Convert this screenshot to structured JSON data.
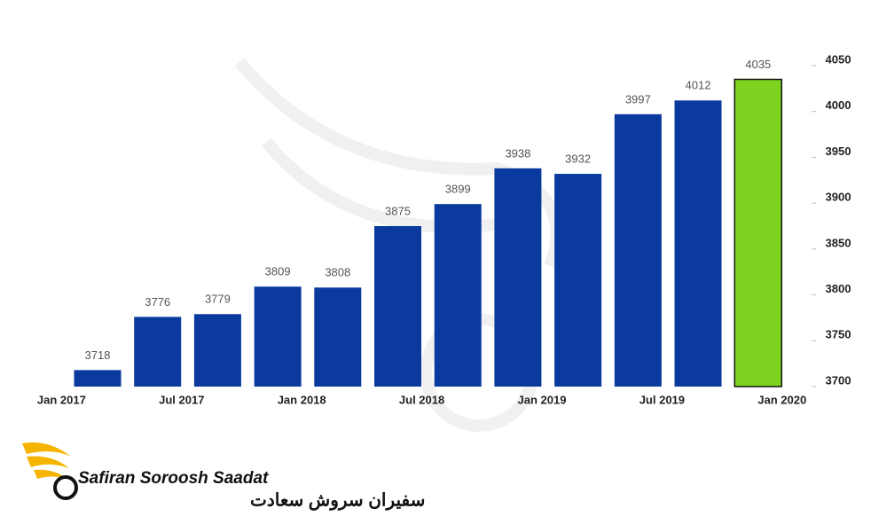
{
  "chart_data": {
    "type": "bar",
    "categories": [
      null,
      null,
      null,
      null,
      null,
      null,
      null,
      null,
      null,
      null,
      null,
      null
    ],
    "x_labels": [
      "Jan 2017",
      "Jul 2017",
      "Jan 2018",
      "Jul 2018",
      "Jan 2019",
      "Jul 2019",
      "Jan 2020"
    ],
    "values": [
      3718,
      3776,
      3779,
      3809,
      3808,
      3875,
      3899,
      3938,
      3932,
      3997,
      4012,
      4035
    ],
    "colors": [
      "#0a3a9e",
      "#0a3a9e",
      "#0a3a9e",
      "#0a3a9e",
      "#0a3a9e",
      "#0a3a9e",
      "#0a3a9e",
      "#0a3a9e",
      "#0a3a9e",
      "#0a3a9e",
      "#0a3a9e",
      "#7ed321"
    ],
    "ylim": [
      3700,
      4050
    ],
    "yticks": [
      3700,
      3750,
      3800,
      3850,
      3900,
      3950,
      4000,
      4050
    ],
    "y_axis_side": "right"
  },
  "logo": {
    "name": "Safiran Soroosh Saadat",
    "name_fa": "سفیران سروش سعادت"
  }
}
